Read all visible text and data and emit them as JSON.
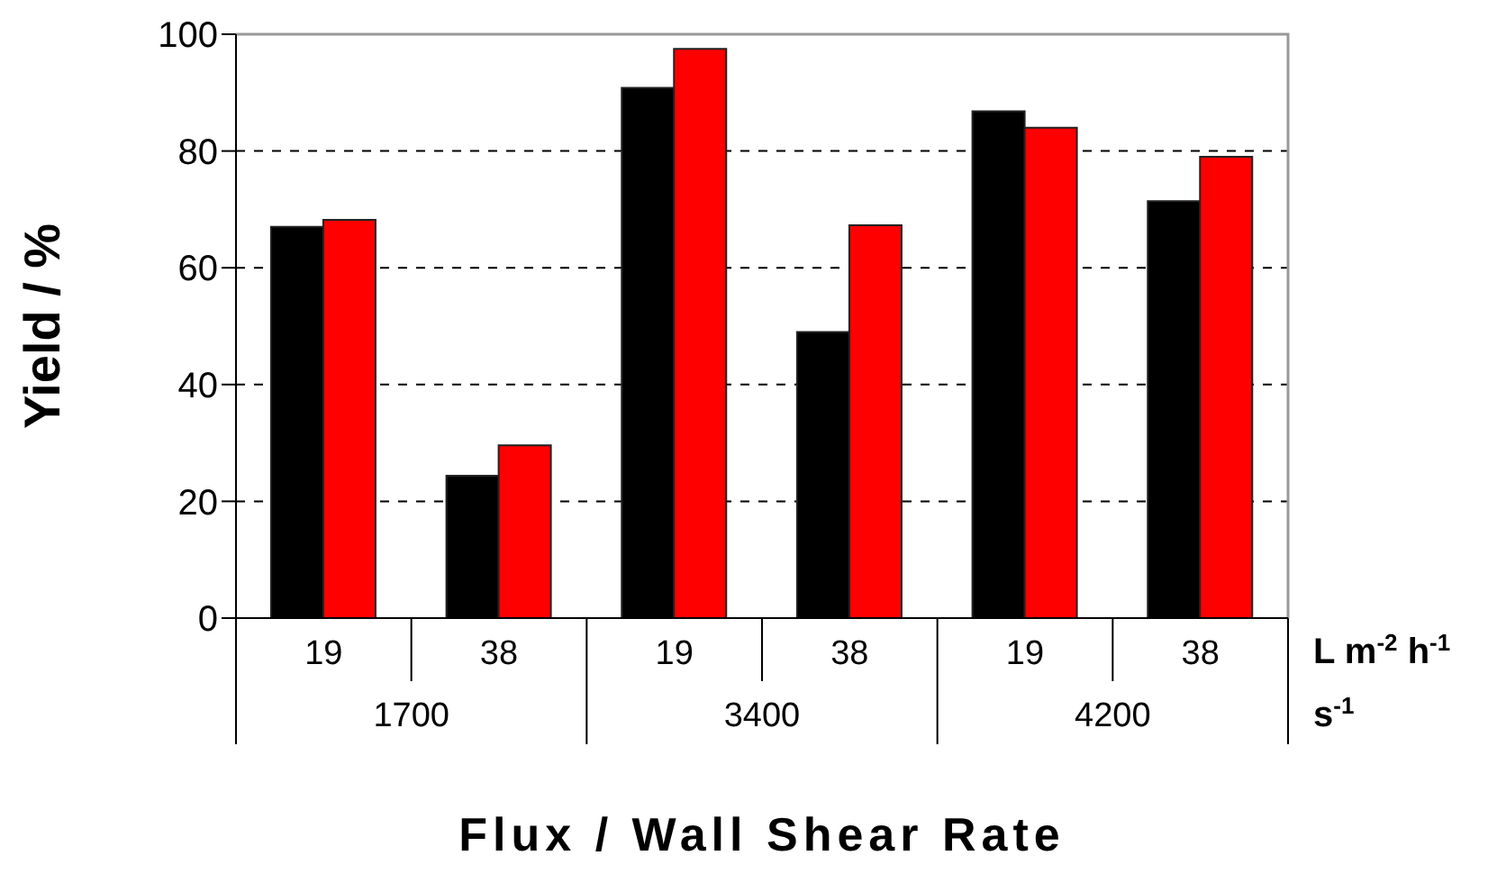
{
  "chart_data": {
    "type": "bar",
    "xlabel": "Flux / Wall Shear Rate",
    "ylabel": "Yield / %",
    "categories": [
      "19",
      "38",
      "19",
      "38",
      "19",
      "38"
    ],
    "series": [
      {
        "color": "#000000",
        "values": [
          67,
          24.4,
          90.8,
          49,
          86.8,
          71.4
        ]
      },
      {
        "color": "#ff0000",
        "values": [
          68.2,
          29.6,
          97.5,
          67.3,
          84,
          79
        ]
      }
    ],
    "annotations": [
      "L m$^{-2}$ h$^{-1}$",
      "s$^{-1}$",
      "1700",
      "3400",
      "4200"
    ],
    "ylim": [
      0,
      100
    ],
    "yticks": [
      0,
      20,
      40,
      60,
      80,
      100
    ],
    "grid": "y",
    "legend": false
  }
}
